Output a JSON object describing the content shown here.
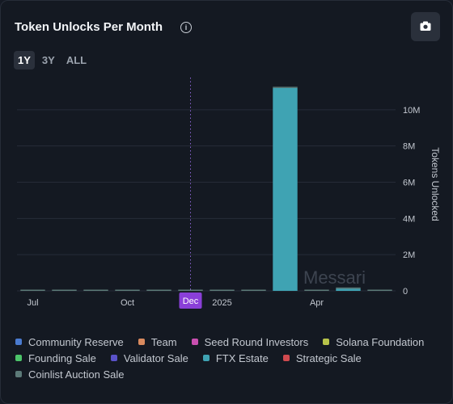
{
  "header": {
    "title": "Token Unlocks Per Month",
    "info_icon": "info-icon",
    "camera_icon": "camera-icon"
  },
  "tabs": [
    {
      "label": "1Y",
      "active": true
    },
    {
      "label": "3Y",
      "active": false
    },
    {
      "label": "ALL",
      "active": false
    }
  ],
  "watermark": "Messari",
  "chart_data": {
    "type": "bar",
    "stacked": true,
    "title": "",
    "ylabel": "Tokens Unlocked",
    "ylim": [
      0,
      12000000
    ],
    "y_ticks": [
      "0",
      "2M",
      "4M",
      "6M",
      "8M",
      "10M"
    ],
    "y_tick_values": [
      0,
      2000000,
      4000000,
      6000000,
      8000000,
      10000000
    ],
    "x_tick_labels": [
      {
        "label": "Jul",
        "at": 0
      },
      {
        "label": "Oct",
        "at": 3
      },
      {
        "label": "Dec",
        "at": 5,
        "highlight": true
      },
      {
        "label": "2025",
        "at": 6
      },
      {
        "label": "Apr",
        "at": 9
      }
    ],
    "current_marker_index": 5,
    "categories": [
      "2024-07",
      "2024-08",
      "2024-09",
      "2024-10",
      "2024-11",
      "2024-12",
      "2025-01",
      "2025-02",
      "2025-03",
      "2025-04",
      "2025-05",
      "2025-06"
    ],
    "series": [
      {
        "name": "Community Reserve",
        "color": "#4a7bd0",
        "values": [
          0,
          0,
          0,
          0,
          0,
          0,
          0,
          0,
          0,
          0,
          0,
          0
        ]
      },
      {
        "name": "Team",
        "color": "#d98a5e",
        "values": [
          0,
          0,
          0,
          0,
          0,
          0,
          0,
          0,
          0,
          0,
          0,
          0
        ]
      },
      {
        "name": "Seed Round Investors",
        "color": "#c94fb0",
        "values": [
          0,
          0,
          0,
          0,
          0,
          0,
          0,
          0,
          0,
          0,
          0,
          0
        ]
      },
      {
        "name": "Solana Foundation",
        "color": "#b7c34a",
        "values": [
          0,
          0,
          0,
          0,
          0,
          0,
          0,
          0,
          0,
          0,
          0,
          0
        ]
      },
      {
        "name": "Founding Sale",
        "color": "#4cc46a",
        "values": [
          0,
          0,
          0,
          0,
          0,
          0,
          0,
          0,
          0,
          0,
          0,
          0
        ]
      },
      {
        "name": "Validator Sale",
        "color": "#5a52c9",
        "values": [
          0,
          0,
          0,
          0,
          0,
          0,
          0,
          0,
          0,
          0,
          0,
          0
        ]
      },
      {
        "name": "FTX Estate",
        "color": "#3fa3b3",
        "values": [
          0,
          0,
          0,
          0,
          0,
          0,
          0,
          0,
          11200000,
          0,
          120000,
          0
        ]
      },
      {
        "name": "Strategic Sale",
        "color": "#d04a4f",
        "values": [
          0,
          0,
          0,
          0,
          0,
          0,
          0,
          0,
          0,
          0,
          0,
          0
        ]
      },
      {
        "name": "Coinlist Auction Sale",
        "color": "#5c7a78",
        "values": [
          40000,
          40000,
          40000,
          40000,
          40000,
          40000,
          40000,
          40000,
          40000,
          40000,
          40000,
          40000
        ]
      }
    ],
    "legend_position": "bottom",
    "grid": true
  }
}
